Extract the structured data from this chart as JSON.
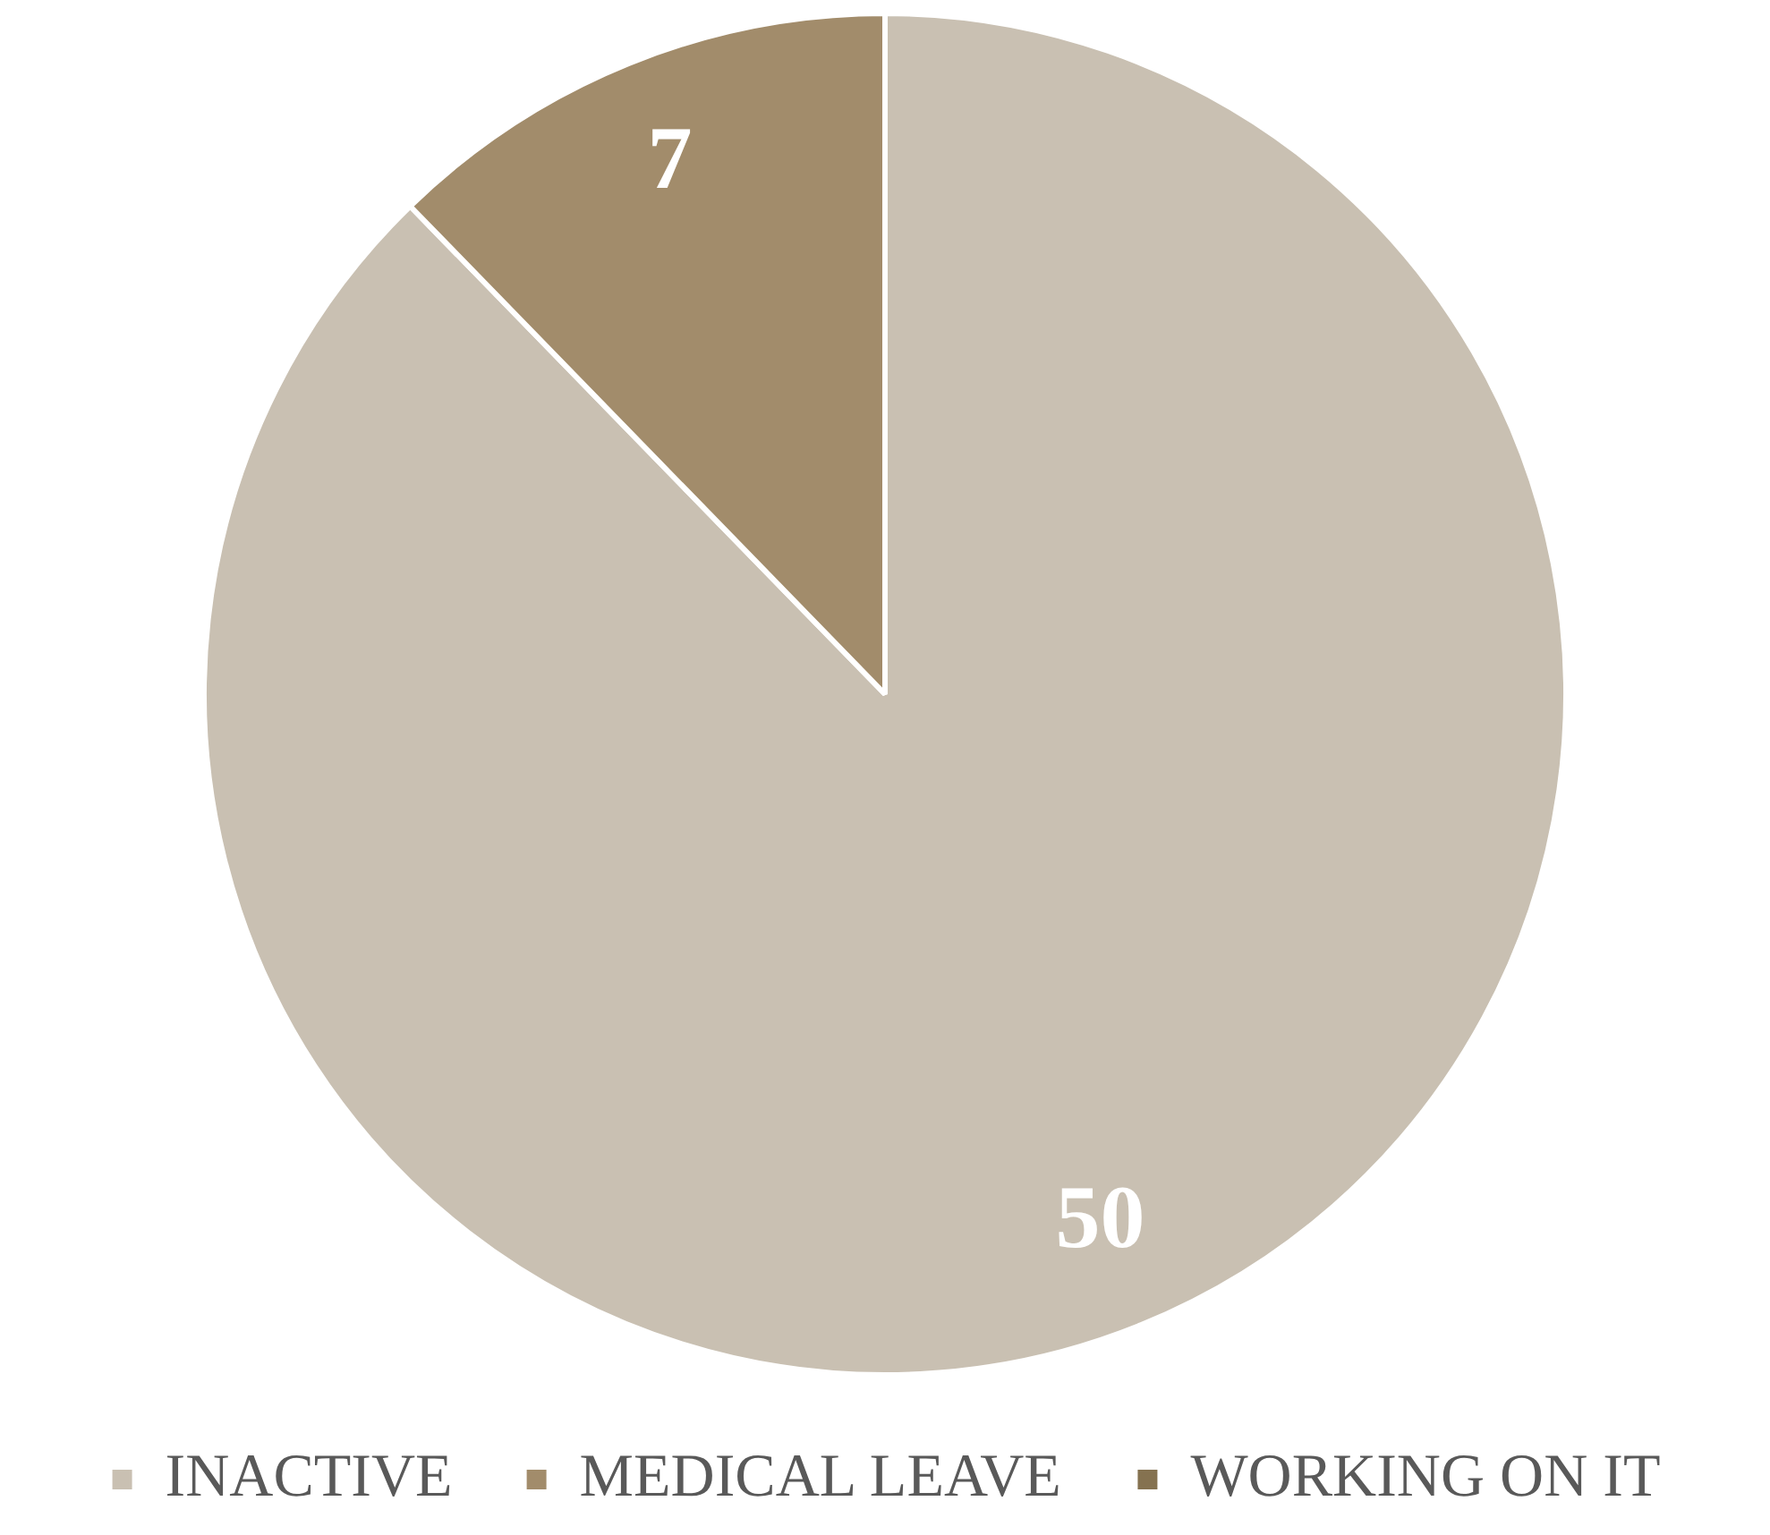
{
  "chart_data": {
    "type": "pie",
    "categories": [
      "INACTIVE",
      "MEDICAL LEAVE",
      "WORKING ON IT"
    ],
    "values": [
      50,
      7,
      0
    ],
    "colors": [
      "#c9c0b2",
      "#a28c6b",
      "#857250"
    ],
    "value_labels": [
      "50",
      "7",
      null
    ],
    "legend": "bottom"
  }
}
